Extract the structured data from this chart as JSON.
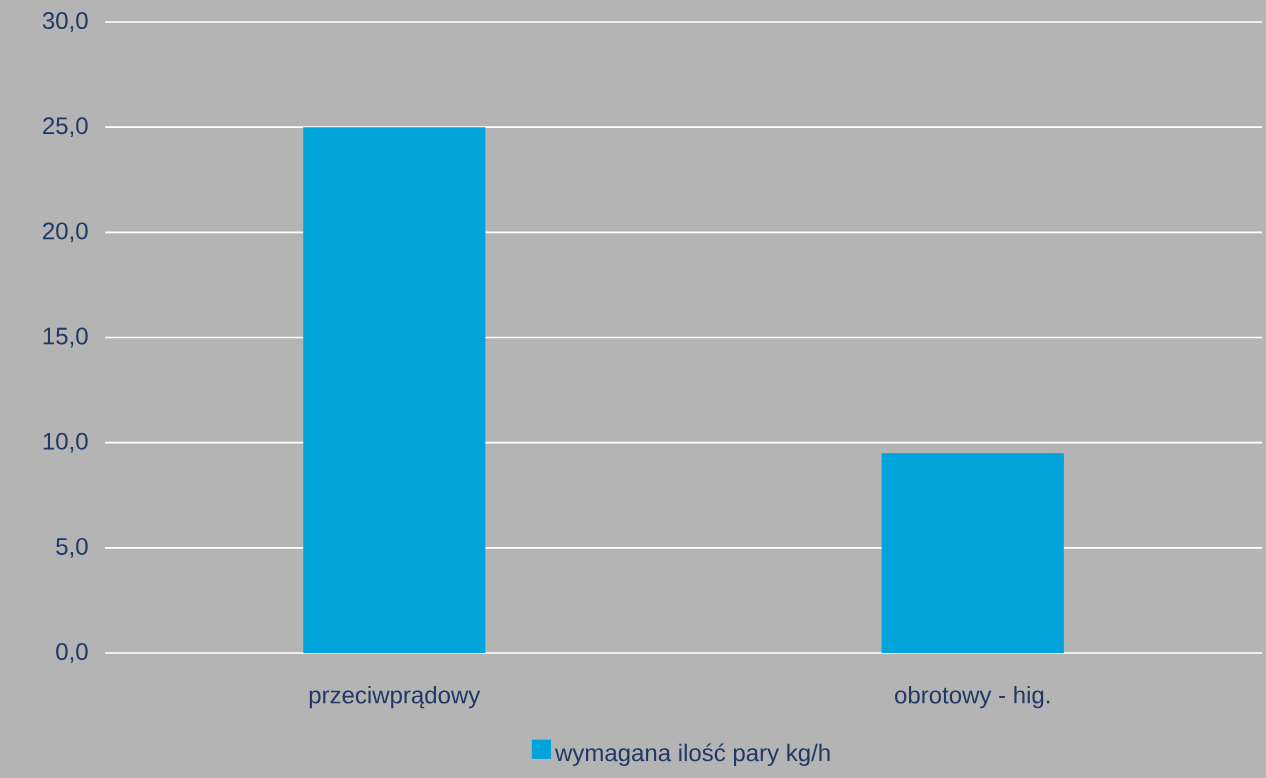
{
  "chart_data": {
    "type": "bar",
    "categories": [
      "przeciwprądowy",
      "obrotowy - hig."
    ],
    "series": [
      {
        "name": "wymagana ilość pary kg/h",
        "color": "#00a3da",
        "values": [
          25.0,
          9.5
        ]
      }
    ],
    "ylim": [
      0,
      30
    ],
    "yticks": [
      {
        "value": 0,
        "label": "0,0"
      },
      {
        "value": 5,
        "label": "5,0"
      },
      {
        "value": 10,
        "label": "10,0"
      },
      {
        "value": 15,
        "label": "15,0"
      },
      {
        "value": 20,
        "label": "20,0"
      },
      {
        "value": 25,
        "label": "25,0"
      },
      {
        "value": 30,
        "label": "30,0"
      }
    ],
    "grid": "y",
    "legend": "bottom"
  }
}
